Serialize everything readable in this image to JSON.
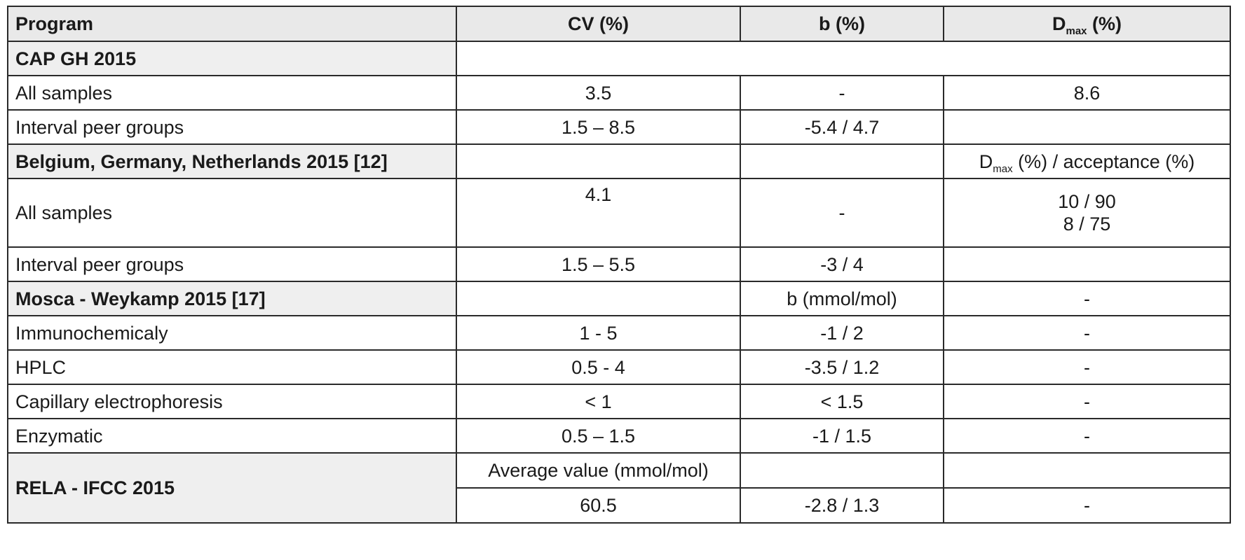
{
  "table": {
    "headers": {
      "program": "Program",
      "cv": "CV  (%)",
      "b": "b (%)",
      "dmax_main": "D",
      "dmax_sub": "max",
      "dmax_suffix": " (%)"
    },
    "cap": {
      "title": "CAP GH 2015",
      "rows": [
        {
          "label": "All samples",
          "cv": "3.5",
          "b": "-",
          "dmax": "8.6"
        },
        {
          "label": "Interval peer groups",
          "cv": "1.5 – 8.5",
          "b": "-5.4 / 4.7",
          "dmax": ""
        }
      ]
    },
    "bgn": {
      "title": "Belgium, Germany, Netherlands 2015 [12]",
      "col3_main": "D",
      "col3_sub": "max",
      "col3_suffix": " (%) / acceptance (%)",
      "all_samples": {
        "label": "All samples",
        "cv": "4.1",
        "b": "-",
        "dmax_line1": "10 / 90",
        "dmax_line2": "8 / 75"
      },
      "interval": {
        "label": "Interval peer groups",
        "cv": "1.5 – 5.5",
        "b": "-3 / 4",
        "dmax": ""
      }
    },
    "mosca": {
      "title": "Mosca - Weykamp 2015 [17]",
      "b_header": "b (mmol/mol)",
      "dmax": "-",
      "rows": [
        {
          "label": "Immunochemicaly",
          "cv": "1 - 5",
          "b": "-1 / 2",
          "dmax": "-"
        },
        {
          "label": "HPLC",
          "cv": "0.5 - 4",
          "b": "-3.5 / 1.2",
          "dmax": "-"
        },
        {
          "label": "Capillary electrophoresis",
          "cv": "< 1",
          "b": "< 1.5",
          "dmax": "-"
        },
        {
          "label": "Enzymatic",
          "cv": "0.5 – 1.5",
          "b": "-1 / 1.5",
          "dmax": "-"
        }
      ]
    },
    "rela": {
      "title": "RELA - IFCC 2015",
      "cv_header": "Average value (mmol/mol)",
      "cv": "60.5",
      "b": "-2.8 / 1.3",
      "dmax": "-"
    }
  }
}
